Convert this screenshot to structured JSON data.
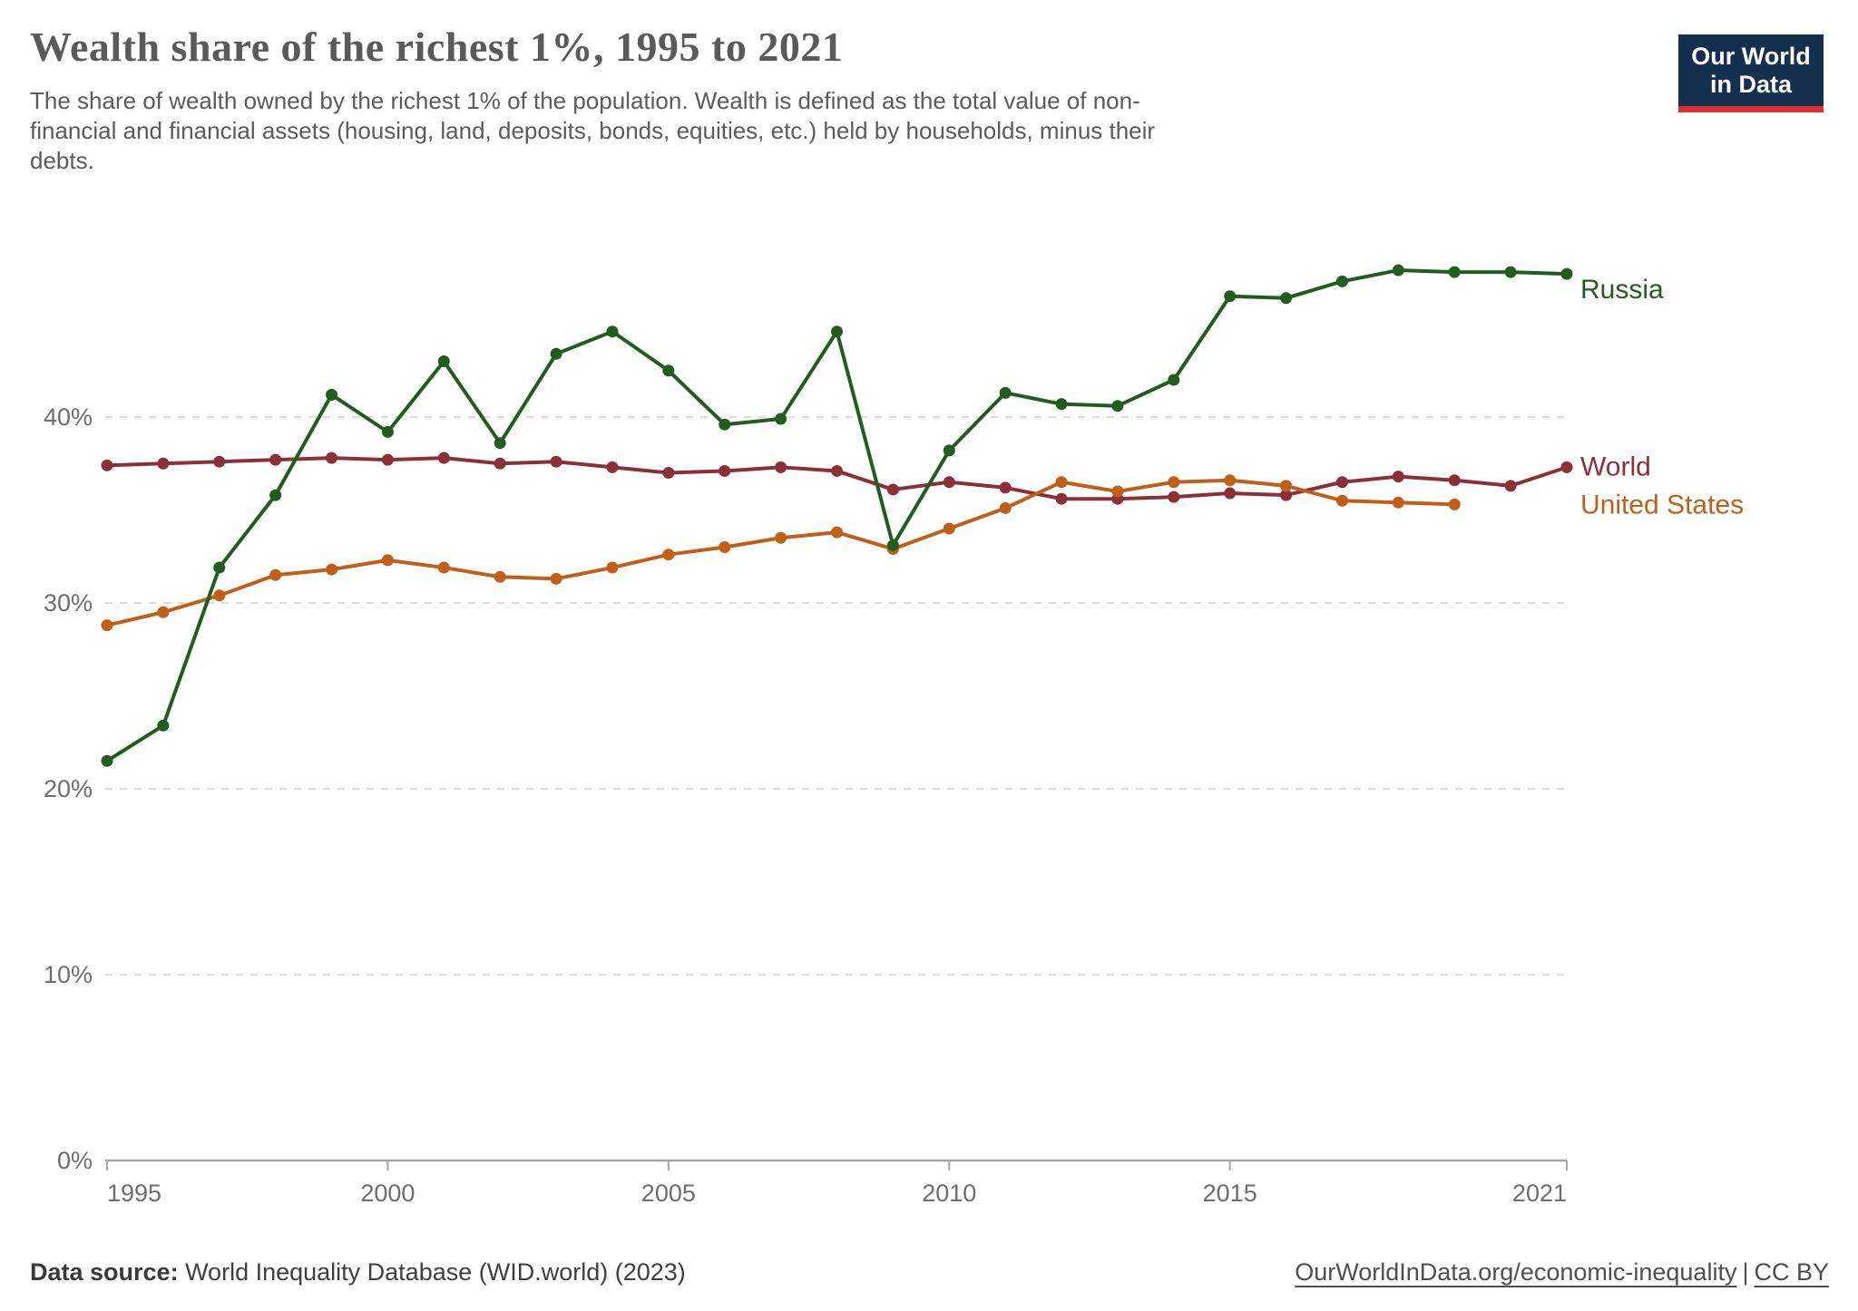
{
  "header": {
    "title": "Wealth share of the richest 1%, 1995 to 2021",
    "subtitle": "The share of wealth owned by the richest 1% of the population. Wealth is defined as the total value of non-financial and financial assets (housing, land, deposits, bonds, equities, etc.) held by households, minus their debts."
  },
  "logo": {
    "line1": "Our World",
    "line2": "in Data",
    "bg_color": "#15304e",
    "bar_color": "#da2f33"
  },
  "chart_data": {
    "type": "line",
    "title": "Wealth share of the richest 1%, 1995 to 2021",
    "xlabel": "",
    "ylabel": "",
    "x_ticks": [
      1995,
      2000,
      2005,
      2010,
      2015,
      2021
    ],
    "y_ticks": [
      0,
      10,
      20,
      30,
      40
    ],
    "y_tick_suffix": "%",
    "xlim": [
      1995,
      2021
    ],
    "ylim": [
      0,
      51.5
    ],
    "grid": "horizontal-dashed",
    "legend_position": "line-end-labels",
    "grid_color": "#dcdcdc",
    "axis_color": "#a6a6a6",
    "tick_text_color": "#6e6e6e",
    "series": [
      {
        "name": "World",
        "color": "#8b3039",
        "label_dy": -1,
        "x": [
          1995,
          1996,
          1997,
          1998,
          1999,
          2000,
          2001,
          2002,
          2003,
          2004,
          2005,
          2006,
          2007,
          2008,
          2009,
          2010,
          2011,
          2012,
          2013,
          2014,
          2015,
          2016,
          2017,
          2018,
          2019,
          2020,
          2021
        ],
        "values": [
          37.4,
          37.5,
          37.6,
          37.7,
          37.8,
          37.7,
          37.8,
          37.5,
          37.6,
          37.3,
          37.0,
          37.1,
          37.3,
          37.1,
          36.1,
          36.5,
          36.2,
          35.6,
          35.6,
          35.7,
          35.9,
          35.8,
          36.5,
          36.8,
          36.6,
          36.3,
          37.3
        ]
      },
      {
        "name": "United States",
        "color": "#c05e1a",
        "label_dy": 0,
        "x": [
          1995,
          1996,
          1997,
          1998,
          1999,
          2000,
          2001,
          2002,
          2003,
          2004,
          2005,
          2006,
          2007,
          2008,
          2009,
          2010,
          2011,
          2012,
          2013,
          2014,
          2015,
          2016,
          2017,
          2018,
          2019
        ],
        "values": [
          28.8,
          29.5,
          30.4,
          31.5,
          31.8,
          32.3,
          31.9,
          31.4,
          31.3,
          31.9,
          32.6,
          33.0,
          33.5,
          33.8,
          32.9,
          34.0,
          35.1,
          36.5,
          36.0,
          36.5,
          36.6,
          36.3,
          35.5,
          35.4,
          35.3
        ]
      },
      {
        "name": "Russia",
        "color": "#235c1f",
        "label_dy": 17,
        "x": [
          1995,
          1996,
          1997,
          1998,
          1999,
          2000,
          2001,
          2002,
          2003,
          2004,
          2005,
          2006,
          2007,
          2008,
          2009,
          2010,
          2011,
          2012,
          2013,
          2014,
          2015,
          2016,
          2017,
          2018,
          2019,
          2020,
          2021
        ],
        "values": [
          21.5,
          23.4,
          31.9,
          35.8,
          41.2,
          39.2,
          43.0,
          38.6,
          43.4,
          44.6,
          42.5,
          39.6,
          39.9,
          44.6,
          33.1,
          38.2,
          41.3,
          40.7,
          40.6,
          42.0,
          46.5,
          46.4,
          47.3,
          47.9,
          47.8,
          47.8,
          47.7
        ]
      }
    ]
  },
  "footer": {
    "source_label": "Data source:",
    "source_text": " World Inequality Database (WID.world) (2023)",
    "link_url": "OurWorldInData.org/economic-inequality",
    "separator": "|",
    "license": "CC BY"
  }
}
